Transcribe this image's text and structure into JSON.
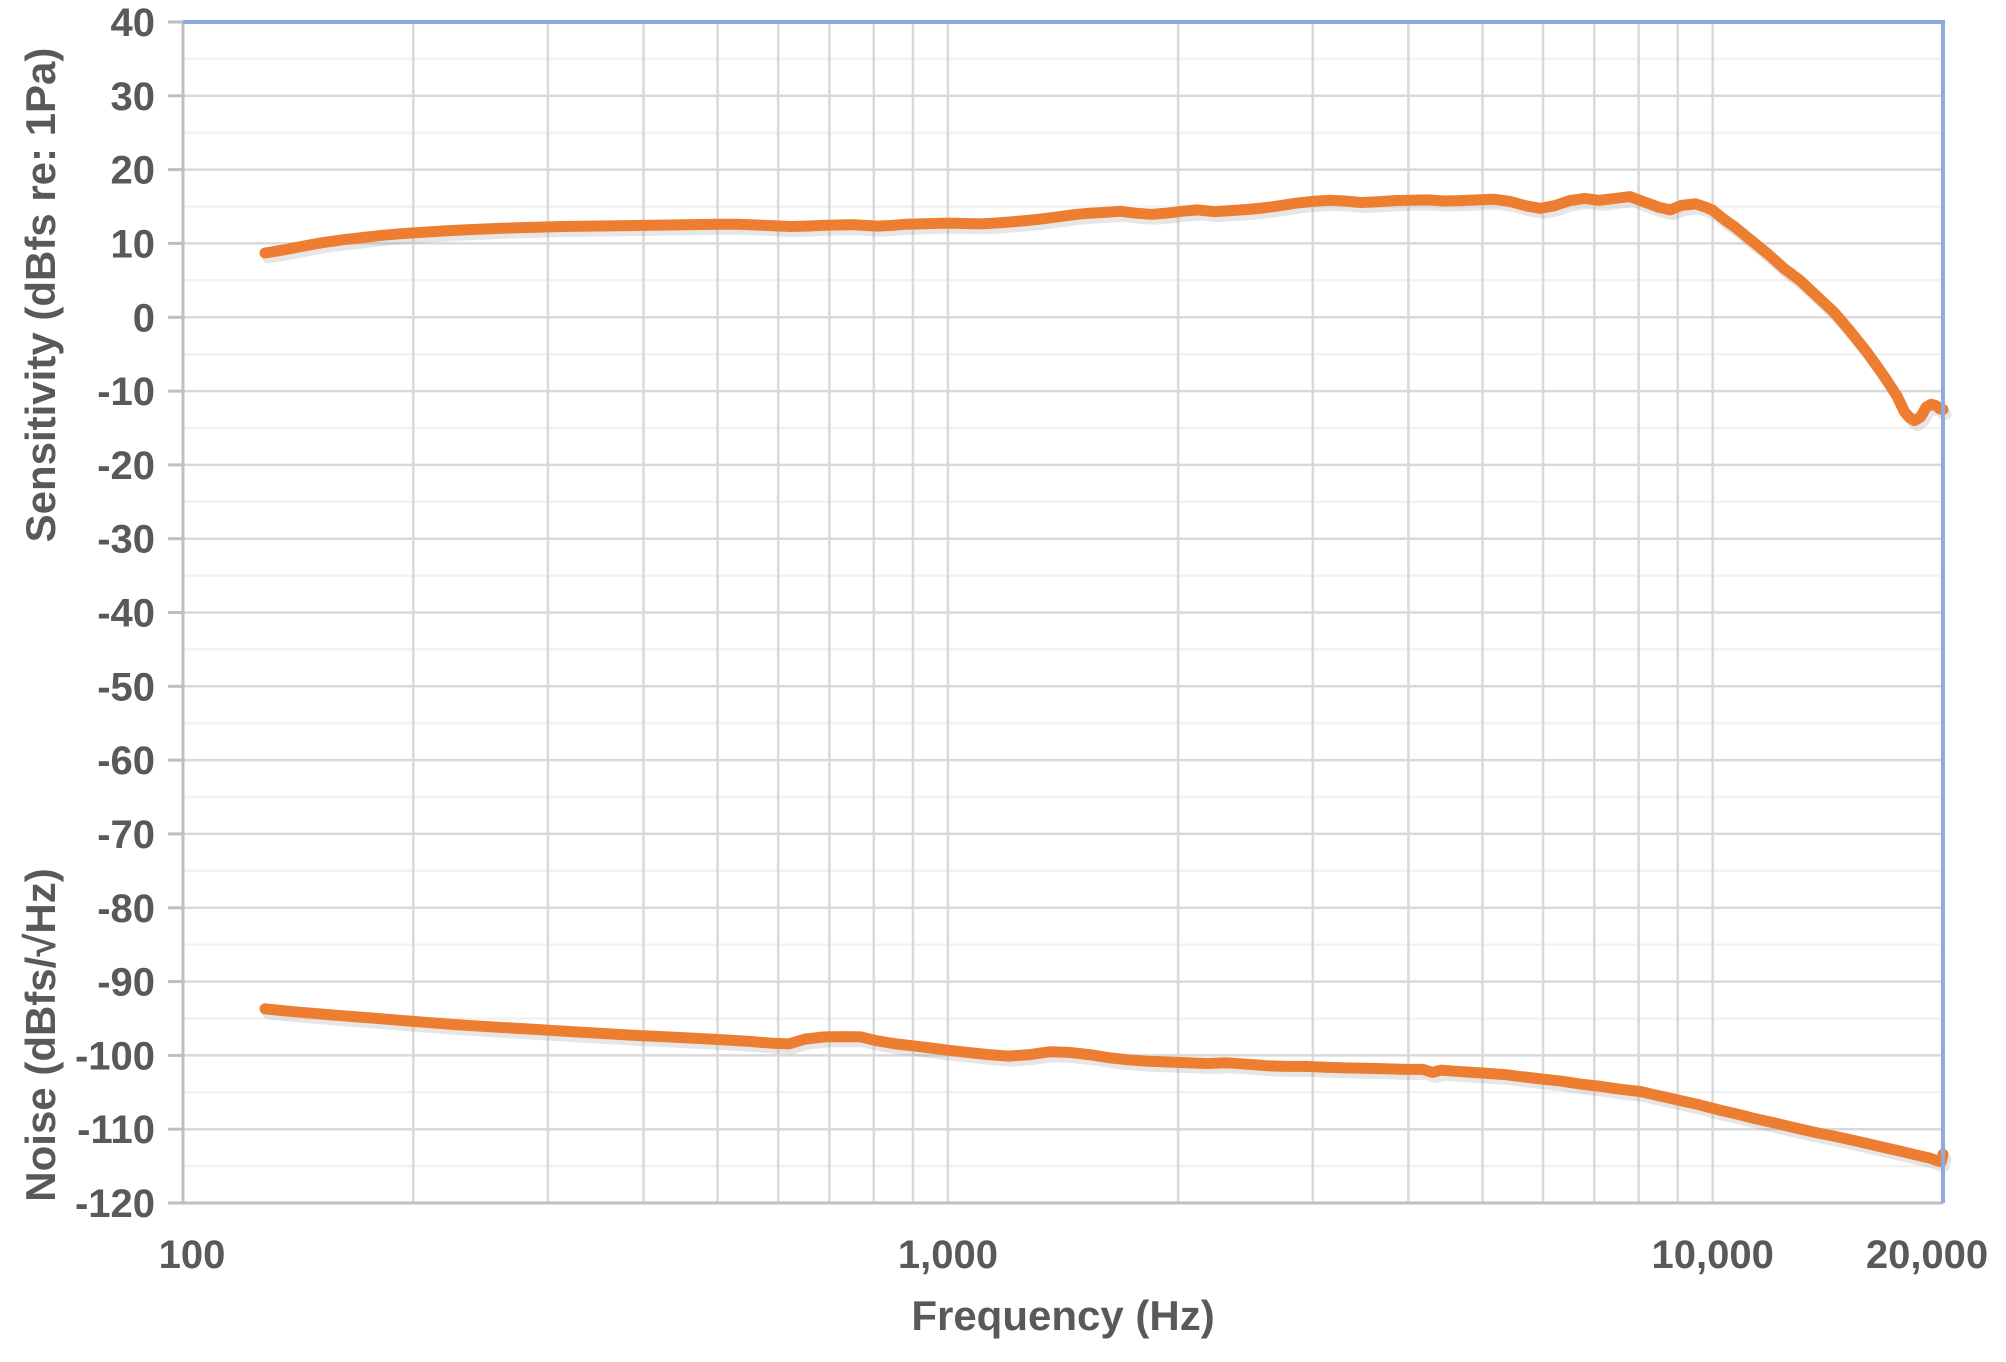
{
  "chart_data": {
    "type": "line",
    "title": "",
    "xlabel": "Frequency (Hz)",
    "y_axis_titles": {
      "top": "Sensitivity (dBfs re: 1Pa)",
      "bottom": "Noise (dBfs/√Hz)"
    },
    "x_scale": "log",
    "x_range": [
      100,
      20000
    ],
    "y_range": [
      -120,
      40
    ],
    "y_major_step": 10,
    "y_minor_step": 5,
    "grid": {
      "major_horizontal": true,
      "minor_horizontal": true,
      "vertical_log": true
    },
    "legend_position": "none",
    "y_tick_labels": [
      "40",
      "30",
      "20",
      "10",
      "0",
      "-10",
      "-20",
      "-30",
      "-40",
      "-50",
      "-60",
      "-70",
      "-80",
      "-90",
      "-100",
      "-110",
      "-120"
    ],
    "x_ticks": [
      {
        "value": 100,
        "label": "100"
      },
      {
        "value": 1000,
        "label": "1,000"
      },
      {
        "value": 10000,
        "label": "10,000"
      },
      {
        "value": 20000,
        "label": "20,000"
      }
    ],
    "colors": {
      "series": "#ED7D31",
      "series_shadow": "#8c8c8c",
      "major_grid": "#D9D9D9",
      "minor_grid": "#F2F2F2",
      "axis": "#BFBFBF",
      "plot_border": "#8FAADC",
      "label": "#595959"
    },
    "series": [
      {
        "name": "Sensitivity (dBfs re: 1Pa)",
        "points": [
          [
            128,
            8.7
          ],
          [
            135,
            9.1
          ],
          [
            143,
            9.6
          ],
          [
            152,
            10.1
          ],
          [
            162,
            10.5
          ],
          [
            172,
            10.8
          ],
          [
            182,
            11.1
          ],
          [
            192,
            11.3
          ],
          [
            205,
            11.5
          ],
          [
            220,
            11.7
          ],
          [
            235,
            11.85
          ],
          [
            252,
            12.0
          ],
          [
            270,
            12.1
          ],
          [
            290,
            12.2
          ],
          [
            312,
            12.3
          ],
          [
            340,
            12.35
          ],
          [
            370,
            12.4
          ],
          [
            400,
            12.45
          ],
          [
            432,
            12.5
          ],
          [
            465,
            12.55
          ],
          [
            500,
            12.6
          ],
          [
            532,
            12.6
          ],
          [
            562,
            12.5
          ],
          [
            592,
            12.4
          ],
          [
            622,
            12.3
          ],
          [
            652,
            12.35
          ],
          [
            684,
            12.45
          ],
          [
            716,
            12.5
          ],
          [
            748,
            12.55
          ],
          [
            778,
            12.45
          ],
          [
            808,
            12.35
          ],
          [
            845,
            12.45
          ],
          [
            882,
            12.6
          ],
          [
            920,
            12.65
          ],
          [
            960,
            12.7
          ],
          [
            1000,
            12.75
          ],
          [
            1050,
            12.7
          ],
          [
            1100,
            12.65
          ],
          [
            1150,
            12.75
          ],
          [
            1205,
            12.9
          ],
          [
            1262,
            13.1
          ],
          [
            1322,
            13.3
          ],
          [
            1390,
            13.6
          ],
          [
            1460,
            13.9
          ],
          [
            1530,
            14.1
          ],
          [
            1600,
            14.2
          ],
          [
            1680,
            14.35
          ],
          [
            1760,
            14.1
          ],
          [
            1845,
            13.95
          ],
          [
            1930,
            14.1
          ],
          [
            2020,
            14.35
          ],
          [
            2120,
            14.55
          ],
          [
            2230,
            14.3
          ],
          [
            2340,
            14.45
          ],
          [
            2460,
            14.6
          ],
          [
            2580,
            14.8
          ],
          [
            2710,
            15.1
          ],
          [
            2850,
            15.45
          ],
          [
            3000,
            15.7
          ],
          [
            3150,
            15.85
          ],
          [
            3300,
            15.75
          ],
          [
            3470,
            15.55
          ],
          [
            3650,
            15.65
          ],
          [
            3840,
            15.8
          ],
          [
            4030,
            15.85
          ],
          [
            4240,
            15.9
          ],
          [
            4450,
            15.75
          ],
          [
            4680,
            15.8
          ],
          [
            4920,
            15.9
          ],
          [
            5170,
            16.0
          ],
          [
            5430,
            15.7
          ],
          [
            5700,
            15.1
          ],
          [
            5950,
            14.75
          ],
          [
            6200,
            15.1
          ],
          [
            6500,
            15.8
          ],
          [
            6800,
            16.1
          ],
          [
            7100,
            15.85
          ],
          [
            7450,
            16.1
          ],
          [
            7800,
            16.35
          ],
          [
            8100,
            15.7
          ],
          [
            8500,
            14.9
          ],
          [
            8800,
            14.55
          ],
          [
            9100,
            15.15
          ],
          [
            9500,
            15.35
          ],
          [
            9800,
            14.9
          ],
          [
            10000,
            14.5
          ],
          [
            10300,
            13.4
          ],
          [
            10700,
            12.2
          ],
          [
            11200,
            10.5
          ],
          [
            11800,
            8.6
          ],
          [
            12400,
            6.6
          ],
          [
            13000,
            5.0
          ],
          [
            13700,
            2.8
          ],
          [
            14400,
            0.7
          ],
          [
            15100,
            -1.8
          ],
          [
            15900,
            -4.7
          ],
          [
            16700,
            -7.8
          ],
          [
            17400,
            -10.6
          ],
          [
            17800,
            -12.8
          ],
          [
            18100,
            -13.6
          ],
          [
            18350,
            -14.0
          ],
          [
            18700,
            -13.5
          ],
          [
            19000,
            -12.2
          ],
          [
            19300,
            -11.8
          ],
          [
            19600,
            -12.0
          ],
          [
            19800,
            -12.4
          ],
          [
            20000,
            -12.5
          ]
        ]
      },
      {
        "name": "Noise (dBfs/√Hz)",
        "points": [
          [
            128,
            -93.7
          ],
          [
            140,
            -94.1
          ],
          [
            160,
            -94.6
          ],
          [
            180,
            -95.0
          ],
          [
            200,
            -95.4
          ],
          [
            225,
            -95.8
          ],
          [
            250,
            -96.1
          ],
          [
            280,
            -96.4
          ],
          [
            312,
            -96.7
          ],
          [
            350,
            -97.0
          ],
          [
            390,
            -97.3
          ],
          [
            430,
            -97.5
          ],
          [
            470,
            -97.7
          ],
          [
            510,
            -97.9
          ],
          [
            550,
            -98.1
          ],
          [
            590,
            -98.35
          ],
          [
            620,
            -98.45
          ],
          [
            650,
            -97.8
          ],
          [
            690,
            -97.5
          ],
          [
            730,
            -97.45
          ],
          [
            770,
            -97.5
          ],
          [
            805,
            -98.0
          ],
          [
            850,
            -98.4
          ],
          [
            900,
            -98.7
          ],
          [
            950,
            -99.0
          ],
          [
            1000,
            -99.3
          ],
          [
            1060,
            -99.6
          ],
          [
            1130,
            -99.9
          ],
          [
            1200,
            -100.1
          ],
          [
            1280,
            -99.9
          ],
          [
            1360,
            -99.5
          ],
          [
            1440,
            -99.6
          ],
          [
            1530,
            -99.9
          ],
          [
            1620,
            -100.3
          ],
          [
            1720,
            -100.6
          ],
          [
            1830,
            -100.8
          ],
          [
            1940,
            -100.9
          ],
          [
            2060,
            -101.0
          ],
          [
            2180,
            -101.1
          ],
          [
            2320,
            -101.0
          ],
          [
            2460,
            -101.2
          ],
          [
            2610,
            -101.4
          ],
          [
            2770,
            -101.5
          ],
          [
            2940,
            -101.5
          ],
          [
            3120,
            -101.6
          ],
          [
            3310,
            -101.7
          ],
          [
            3510,
            -101.75
          ],
          [
            3730,
            -101.8
          ],
          [
            3950,
            -101.9
          ],
          [
            4180,
            -101.9
          ],
          [
            4300,
            -102.3
          ],
          [
            4420,
            -102.0
          ],
          [
            4600,
            -102.15
          ],
          [
            4850,
            -102.3
          ],
          [
            5100,
            -102.45
          ],
          [
            5350,
            -102.6
          ],
          [
            5640,
            -102.9
          ],
          [
            5980,
            -103.2
          ],
          [
            6350,
            -103.5
          ],
          [
            6730,
            -103.9
          ],
          [
            7140,
            -104.2
          ],
          [
            7580,
            -104.6
          ],
          [
            8040,
            -104.9
          ],
          [
            8530,
            -105.5
          ],
          [
            9050,
            -106.1
          ],
          [
            9600,
            -106.7
          ],
          [
            10200,
            -107.4
          ],
          [
            10800,
            -108.0
          ],
          [
            11400,
            -108.6
          ],
          [
            12100,
            -109.2
          ],
          [
            12900,
            -109.9
          ],
          [
            13700,
            -110.5
          ],
          [
            14500,
            -111.0
          ],
          [
            15400,
            -111.6
          ],
          [
            16300,
            -112.2
          ],
          [
            17300,
            -112.8
          ],
          [
            18300,
            -113.4
          ],
          [
            19200,
            -113.9
          ],
          [
            19700,
            -114.3
          ],
          [
            19900,
            -114.4
          ],
          [
            20000,
            -113.4
          ]
        ]
      }
    ]
  }
}
